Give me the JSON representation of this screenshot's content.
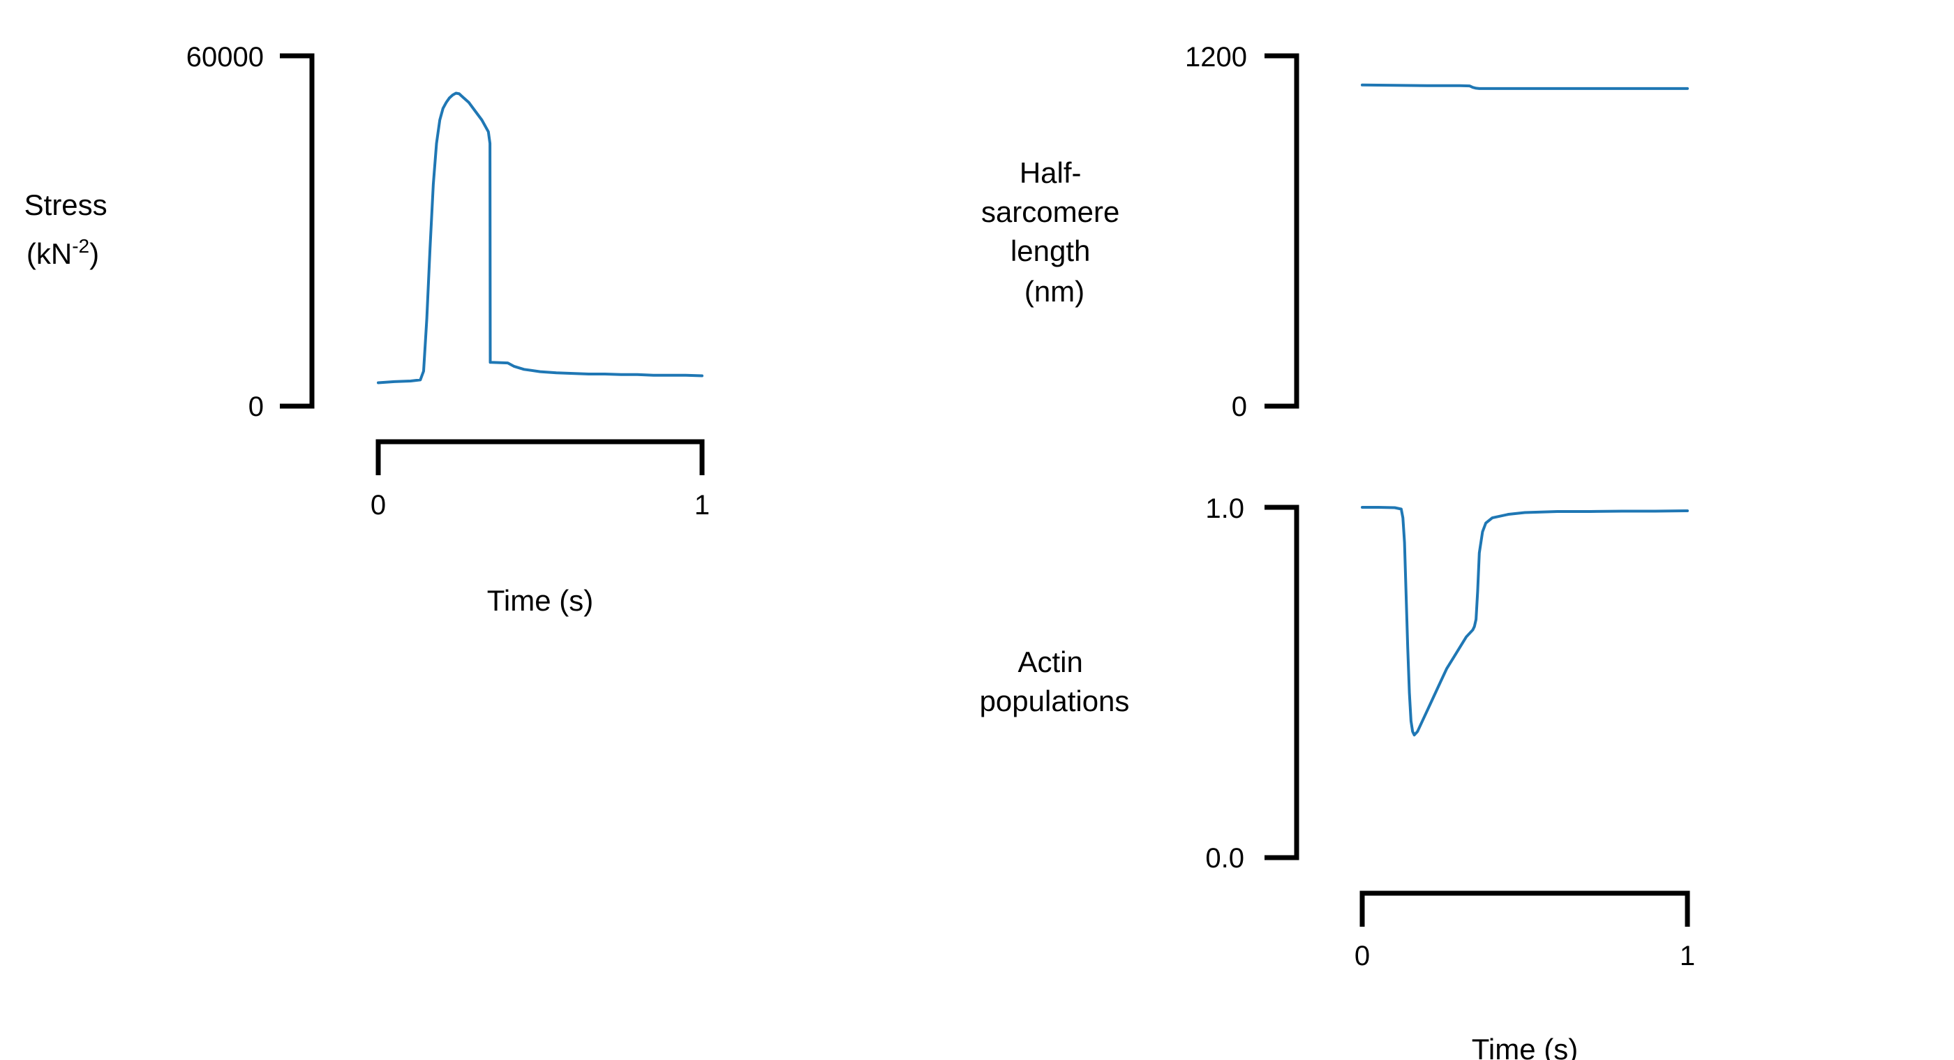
{
  "chart_data": [
    {
      "type": "line",
      "panel": "stress",
      "ylabel_lines": [
        "Stress",
        "(kN"
      ],
      "ylabel_superscript": "-2",
      "ylabel_suffix": ")",
      "xlabel": "Time (s)",
      "ylim": [
        0,
        60000
      ],
      "xlim": [
        0,
        1
      ],
      "yticks": [
        "60000",
        "0"
      ],
      "xticks": [
        "0",
        "1"
      ],
      "grid": false,
      "color": "#1f77b4",
      "x": [
        0.0,
        0.05,
        0.1,
        0.13,
        0.14,
        0.15,
        0.16,
        0.17,
        0.18,
        0.19,
        0.2,
        0.21,
        0.22,
        0.23,
        0.24,
        0.25,
        0.26,
        0.28,
        0.3,
        0.32,
        0.34,
        0.345,
        0.346,
        0.35,
        0.4,
        0.42,
        0.45,
        0.5,
        0.55,
        0.6,
        0.65,
        0.7,
        0.75,
        0.8,
        0.85,
        0.9,
        0.95,
        1.0
      ],
      "y": [
        4000,
        4200,
        4300,
        4500,
        6000,
        15000,
        27000,
        38000,
        45000,
        49000,
        51000,
        52000,
        52800,
        53300,
        53600,
        53500,
        53000,
        52000,
        50500,
        49000,
        47000,
        45000,
        7500,
        7500,
        7400,
        6800,
        6300,
        5900,
        5700,
        5600,
        5500,
        5500,
        5400,
        5400,
        5300,
        5300,
        5300,
        5200
      ]
    },
    {
      "type": "line",
      "panel": "half-sarcomere-length",
      "ylabel_lines": [
        "Half-",
        "sarcomere",
        "length",
        "(nm)"
      ],
      "ylim": [
        0,
        1200
      ],
      "xlim": [
        0,
        1
      ],
      "yticks": [
        "1200",
        "0"
      ],
      "grid": false,
      "color": "#1f77b4",
      "x": [
        0.0,
        0.1,
        0.2,
        0.3,
        0.33,
        0.34,
        0.35,
        0.36,
        0.4,
        0.5,
        0.6,
        0.7,
        0.8,
        0.9,
        1.0
      ],
      "y": [
        1100,
        1099,
        1098,
        1098,
        1097,
        1092,
        1089,
        1088,
        1088,
        1088,
        1088,
        1088,
        1088,
        1088,
        1088
      ]
    },
    {
      "type": "line",
      "panel": "actin-populations",
      "ylabel_lines": [
        "Actin",
        "populations"
      ],
      "xlabel": "Time (s)",
      "ylim": [
        0.0,
        1.0
      ],
      "xlim": [
        0,
        1
      ],
      "yticks": [
        "1.0",
        "0.0"
      ],
      "xticks": [
        "0",
        "1"
      ],
      "grid": false,
      "color": "#1f77b4",
      "x": [
        0.0,
        0.05,
        0.1,
        0.12,
        0.125,
        0.13,
        0.135,
        0.14,
        0.145,
        0.15,
        0.155,
        0.16,
        0.17,
        0.18,
        0.2,
        0.22,
        0.24,
        0.26,
        0.28,
        0.3,
        0.32,
        0.34,
        0.345,
        0.35,
        0.355,
        0.36,
        0.37,
        0.38,
        0.4,
        0.45,
        0.5,
        0.6,
        0.7,
        0.8,
        0.9,
        1.0
      ],
      "y": [
        1.0,
        1.0,
        0.999,
        0.995,
        0.97,
        0.9,
        0.75,
        0.6,
        0.47,
        0.39,
        0.36,
        0.35,
        0.36,
        0.38,
        0.42,
        0.46,
        0.5,
        0.54,
        0.57,
        0.6,
        0.63,
        0.65,
        0.66,
        0.68,
        0.76,
        0.87,
        0.93,
        0.955,
        0.97,
        0.98,
        0.985,
        0.988,
        0.988,
        0.989,
        0.989,
        0.99
      ]
    }
  ]
}
